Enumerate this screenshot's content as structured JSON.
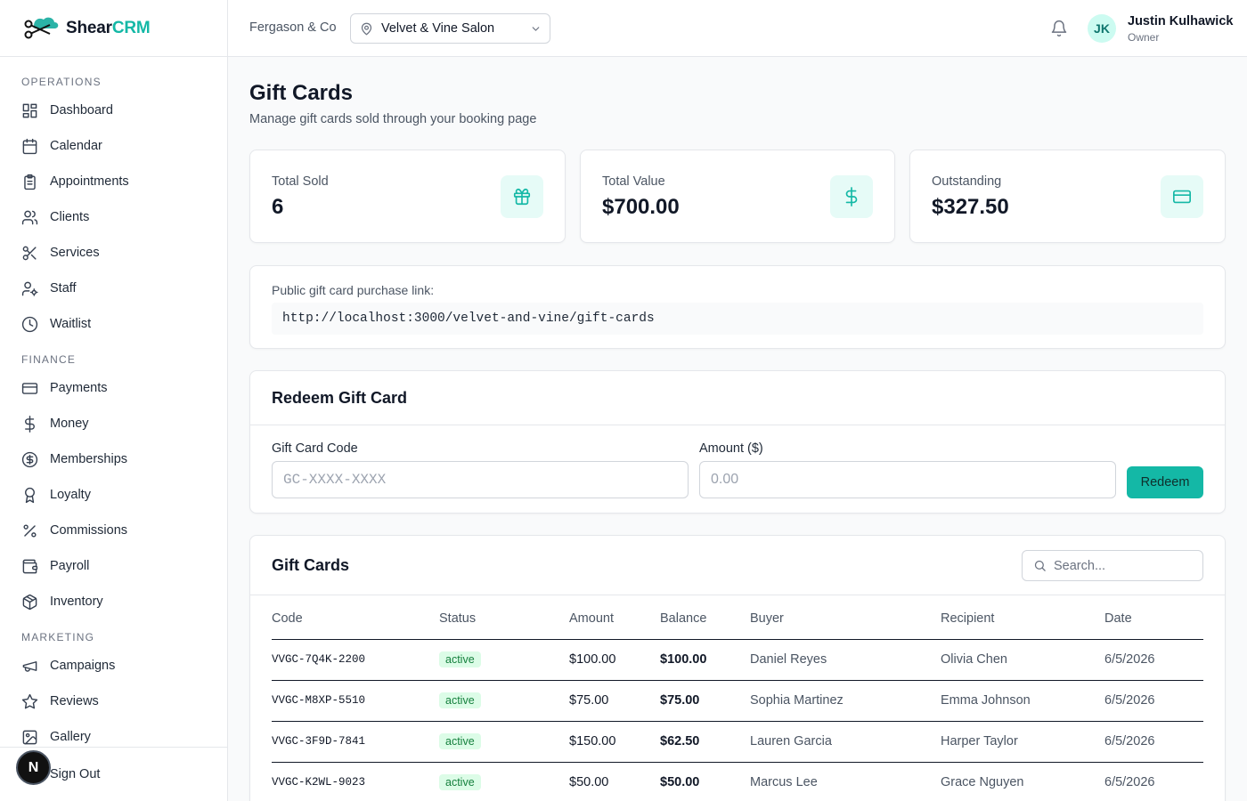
{
  "brand": {
    "part1": "Shear",
    "part2": "CRM"
  },
  "colors": {
    "accent": "#14b8a6",
    "accent_bg": "#e6fbf7",
    "active_badge_bg": "#dcfce7",
    "active_badge_text": "#15803d"
  },
  "sidebar": {
    "sections": [
      {
        "title": "OPERATIONS",
        "items": [
          {
            "label": "Dashboard",
            "icon": "dashboard-icon"
          },
          {
            "label": "Calendar",
            "icon": "calendar-icon"
          },
          {
            "label": "Appointments",
            "icon": "clipboard-icon"
          },
          {
            "label": "Clients",
            "icon": "users-icon"
          },
          {
            "label": "Services",
            "icon": "scissors-icon"
          },
          {
            "label": "Staff",
            "icon": "staff-icon"
          },
          {
            "label": "Waitlist",
            "icon": "clock-icon"
          }
        ]
      },
      {
        "title": "FINANCE",
        "items": [
          {
            "label": "Payments",
            "icon": "credit-card-icon"
          },
          {
            "label": "Money",
            "icon": "dollar-icon"
          },
          {
            "label": "Memberships",
            "icon": "dollar-circle-icon"
          },
          {
            "label": "Loyalty",
            "icon": "award-icon"
          },
          {
            "label": "Commissions",
            "icon": "percent-icon"
          },
          {
            "label": "Payroll",
            "icon": "wallet-icon"
          },
          {
            "label": "Inventory",
            "icon": "package-icon"
          }
        ]
      },
      {
        "title": "MARKETING",
        "items": [
          {
            "label": "Campaigns",
            "icon": "megaphone-icon"
          },
          {
            "label": "Reviews",
            "icon": "star-icon"
          },
          {
            "label": "Gallery",
            "icon": "image-icon"
          }
        ]
      }
    ],
    "sign_out": "Sign Out",
    "badge_letter": "N"
  },
  "topbar": {
    "org_name": "Fergason & Co",
    "location": "Velvet & Vine Salon",
    "user": {
      "initials": "JK",
      "name": "Justin Kulhawick",
      "role": "Owner"
    }
  },
  "page": {
    "title": "Gift Cards",
    "subtitle": "Manage gift cards sold through your booking page"
  },
  "stats": [
    {
      "label": "Total Sold",
      "value": "6",
      "icon": "gift-icon"
    },
    {
      "label": "Total Value",
      "value": "$700.00",
      "icon": "dollar-icon"
    },
    {
      "label": "Outstanding",
      "value": "$327.50",
      "icon": "credit-card-icon"
    }
  ],
  "public_link": {
    "label": "Public gift card purchase link:",
    "url": "http://localhost:3000/velvet-and-vine/gift-cards"
  },
  "redeem": {
    "title": "Redeem Gift Card",
    "code_label": "Gift Card Code",
    "code_placeholder": "GC-XXXX-XXXX",
    "amount_label": "Amount ($)",
    "amount_placeholder": "0.00",
    "button": "Redeem"
  },
  "gift_cards": {
    "title": "Gift Cards",
    "search_placeholder": "Search...",
    "columns": [
      "Code",
      "Status",
      "Amount",
      "Balance",
      "Buyer",
      "Recipient",
      "Date"
    ],
    "rows": [
      {
        "code": "VVGC-7Q4K-2200",
        "status": "active",
        "amount": "$100.00",
        "balance": "$100.00",
        "buyer": "Daniel Reyes",
        "recipient": "Olivia Chen",
        "date": "6/5/2026"
      },
      {
        "code": "VVGC-M8XP-5510",
        "status": "active",
        "amount": "$75.00",
        "balance": "$75.00",
        "buyer": "Sophia Martinez",
        "recipient": "Emma Johnson",
        "date": "6/5/2026"
      },
      {
        "code": "VVGC-3F9D-7841",
        "status": "active",
        "amount": "$150.00",
        "balance": "$62.50",
        "buyer": "Lauren Garcia",
        "recipient": "Harper Taylor",
        "date": "6/5/2026"
      },
      {
        "code": "VVGC-K2WL-9023",
        "status": "active",
        "amount": "$50.00",
        "balance": "$50.00",
        "buyer": "Marcus Lee",
        "recipient": "Grace Nguyen",
        "date": "6/5/2026"
      }
    ]
  }
}
